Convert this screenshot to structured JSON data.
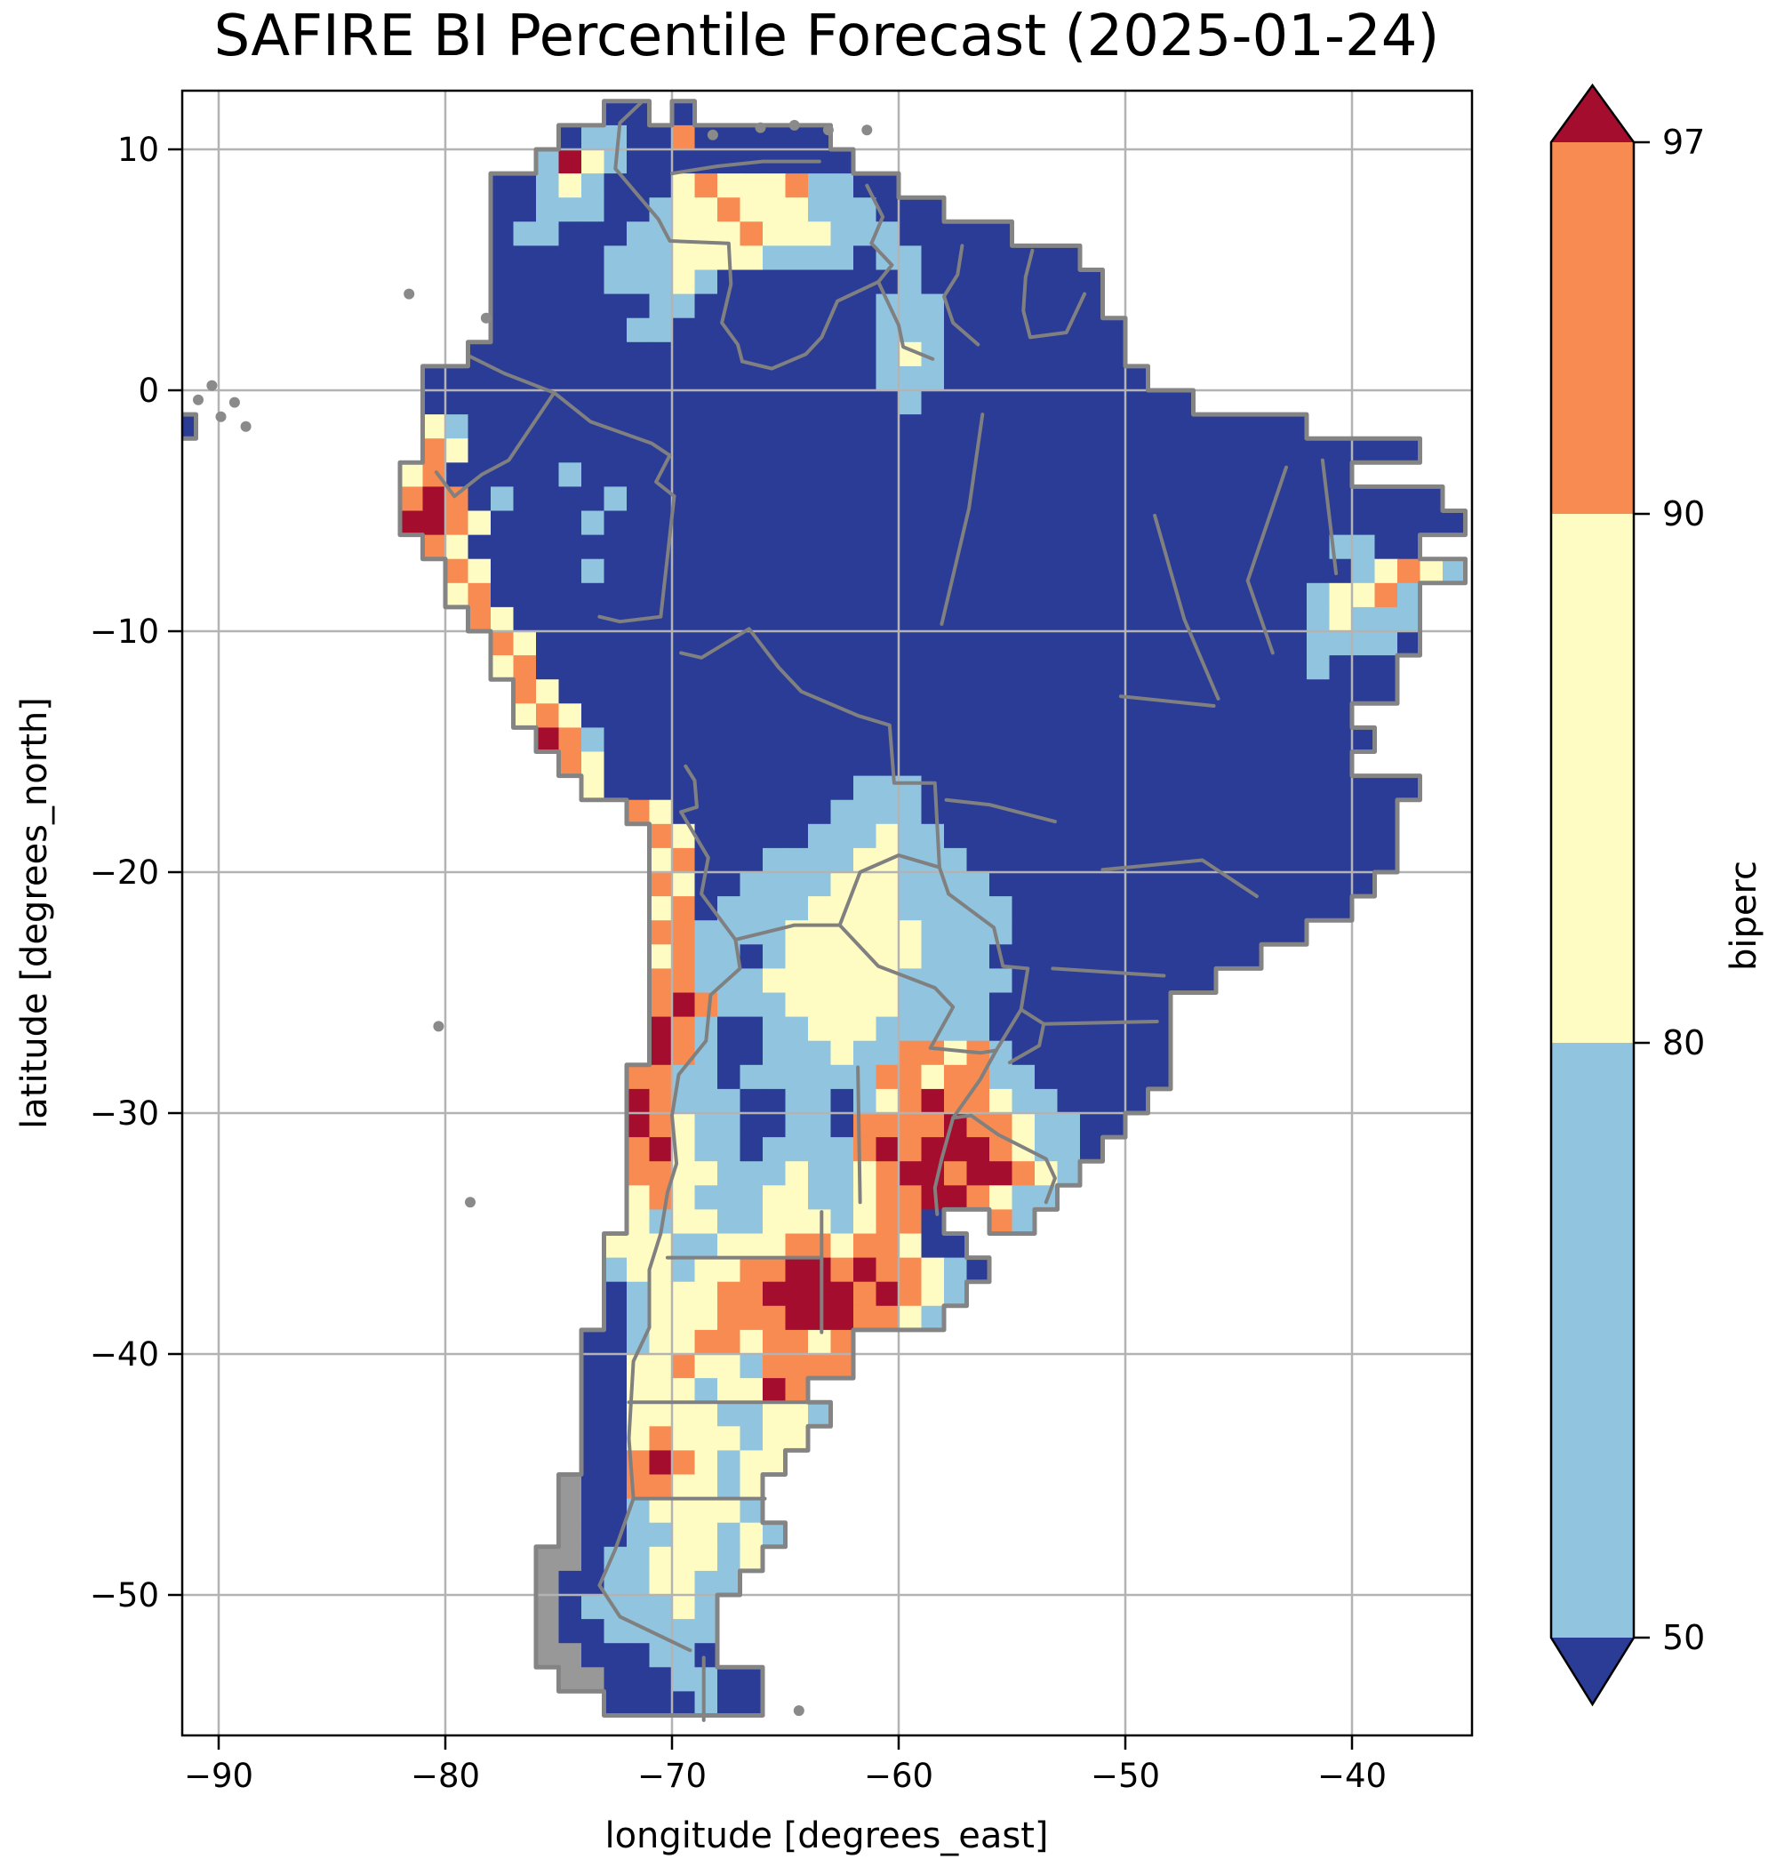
{
  "title": "SAFIRE BI Percentile Forecast (2025-01-24)",
  "axes": {
    "xlabel": "longitude [degrees_east]",
    "ylabel": "latitude [degrees_north]",
    "xticks": [
      {
        "v": -90,
        "label": "−90"
      },
      {
        "v": -80,
        "label": "−80"
      },
      {
        "v": -70,
        "label": "−70"
      },
      {
        "v": -60,
        "label": "−60"
      },
      {
        "v": -50,
        "label": "−50"
      },
      {
        "v": -40,
        "label": "−40"
      }
    ],
    "yticks": [
      {
        "v": 10,
        "label": "10"
      },
      {
        "v": 0,
        "label": "0"
      },
      {
        "v": -10,
        "label": "−10"
      },
      {
        "v": -20,
        "label": "−20"
      },
      {
        "v": -30,
        "label": "−30"
      },
      {
        "v": -40,
        "label": "−40"
      },
      {
        "v": -50,
        "label": "−50"
      }
    ],
    "xlim": [
      -91.6,
      -34.7
    ],
    "ylim": [
      -55.8,
      12.4
    ],
    "grid": true
  },
  "colorbar": {
    "label": "biperc",
    "extend": "both",
    "levels": [
      50,
      80,
      90,
      97
    ],
    "ticks": [
      {
        "v": 97,
        "label": "97"
      },
      {
        "v": 90,
        "label": "90"
      },
      {
        "v": 80,
        "label": "80"
      },
      {
        "v": 50,
        "label": "50"
      }
    ],
    "segments": [
      {
        "range": "> 97",
        "color": "#a50d2e",
        "shape": "triangle-up"
      },
      {
        "range": "90–97",
        "color": "#f78b51",
        "shape": "band"
      },
      {
        "range": "80–90",
        "color": "#fffcc3",
        "shape": "band"
      },
      {
        "range": "50–80",
        "color": "#90c4df",
        "shape": "band"
      },
      {
        "range": "< 50",
        "color": "#2b3c96",
        "shape": "triangle-down"
      }
    ]
  },
  "style_colors": {
    "gridline": "#b3b3b3",
    "admin_border": "#808080",
    "coastline": "#848484",
    "island": "#8a8a8a",
    "frame": "#000000",
    "background": "#ffffff"
  },
  "chart_data": {
    "type": "heatmap",
    "title": "SAFIRE BI Percentile Forecast (2025-01-24)",
    "variable": "biperc",
    "date": "2025-01-24",
    "region": "South America",
    "legend_position": "right",
    "classes": [
      {
        "key": "b",
        "label": "< 50",
        "color": "#2b3c96"
      },
      {
        "key": "l",
        "label": "50–80",
        "color": "#90c4df"
      },
      {
        "key": "y",
        "label": "80–90",
        "color": "#fffcc3"
      },
      {
        "key": "o",
        "label": "90–97",
        "color": "#f78b51"
      },
      {
        "key": "r",
        "label": "> 97",
        "color": "#a50d2e"
      },
      {
        "key": "g",
        "label": "no-data terrain",
        "color": "#989898"
      }
    ],
    "grid": {
      "lon_min": -92,
      "lat_max": 12,
      "dlon": 1,
      "dlat": 1,
      "ncols": 58,
      "nrows": 68,
      "rows": [
        "...................bb.b...................................",
        ".................bllbbobbbbbb.............................",
        "................lrylbbbbbbbbbb............................",
        "..............bblylbbbyoyyyollbb..........................",
        "..............bblllbblyyoyyylllbbb........................",
        "..............bllbbbllyyyoyyylllbbbbb.....................",
        "..............bbbbblllyyyyllllbllbbbbbbb..................",
        "..............bbbbblllylbbbbbbbblbbbbbbbb.................",
        "..............bbbbbbbllbbbbbbbblllbbbbbbb.................",
        "..............bbbbbbllbbbbbbbbblllbbbbbbbb................",
        ".............bbbbbbbbbbbbbbbbbblylbbbbbbbb................",
        "...........bbbbbbbbbbbbbbbbbbbblllbbbbbbbbb...............",
        "...........bbbbbbbbbbbbbbbbbbbbblbbbbbbbbbbbb.............",
        "b..........ylbbbbbbbbbbbbbbbbbbbbbbbbbbbbbbbbbbbbb........",
        "...........oybbbbbbbbbbbbbbbbbbbbbbbbbbbbbbbbbbbbbbbbbb...",
        "..........yobbbbblbbbbbbbbbbbbbbbbbbbbbbbbbbbbbbbbbb....",
        "..........oroblbbbblbbbbbbbbbbbbbbbbbbbbbbbbbbbbbbbbbbbb.",
        "..........rroybbbblbbbbbbbbbbbbbbbbbbbbbbbbbbbbbbbbbbbbbb",
        "...........oybbbbbbbbbbbbbbbbbbbbbbbbbbbbbbbbbbbbbbllbb",
        "............oybbbblbbbbbbbbbbbbbbbbbbbbbbbbbbbbbbbbblyoyl",
        "............yobbbbbbbbbbbbbbbbbbbbbbbbbbbbbbbbbbbblyyol.",
        ".............oybbbbbbbbbbbbbbbbbbbbbbbbbbbbbbbbbbblylll.",
        "..............oybbbbbbbbbbbbbbbbbbbbbbbbbbbbbbbbbbllllb..",
        "..............yobbbbbbbbbbbbbbbbbbbbbbbbbbbbbbbbbblbbb...",
        "...............oybbbbbbbbbbbbbbbbbbbbbbbbbbbbbbbbbbbbb...",
        "...............yoybbbbbbbbbbbbbbbbbbbbbbbbbbbbbbbbbb....",
        "................rolbbbbbbbbbbbbbbbbbbbbbbbbbbbbbbbbbb....",
        ".................oybbbbbbbbbbbbbbbbbbbbbbbbbbbbbbbbb....",
        "..................ybbbbbbbbbbblllbbbbbbbbbbbbbbbbbbbbbb..",
        "....................oybbbbbbbllllbbbbbbbbbbbbbbbbbbbbb...",
        ".....................oybbbbblllyllbbbbbbbbbbbbbbbbbbbb...",
        ".....................yobbbllllyylllbbbbbbbbbbbbbbbbbbb...",
        ".....................oybbllllyyyllllbbbbbbbbbbbbbbbbb....",
        ".....................yobllllyyyylllllbbbbbbbbbbbbbbb.....",
        ".....................oollllyyyyyyllllbbbbbbbbbbbbb.......",
        ".....................yollblyyyyyylllbbbbbbbbbbbb.........",
        ".....................oolllyyyyyylllllbbbbbbbbb...........",
        ".....................orolllyyyyyllllbbbbbbbb.............",
        ".....................rolbbllyyylllllbbbbbbbb.............",
        ".....................rolbblllyllooyolbbbbbbb.............",
        "....................oollbllllllooyoollbbbbbb.............",
        "....................rolllbbllblyorooyllbbbb...............",
        "....................royllbbllboooorooyllbb................",
        "....................oryllbllllororrroyllb.................",
        "....................ooyylllyllyorrorroyl..................",
        "....................yoylllyyllyoorroyll...................",
        "....................ylyyllyyylyoob..ol....................",
        "...................yyyllyyyooyooybb.......................",
        "...................lyylyyoorrorooylb......................",
        "...................blyyyoorrrroroyl.......................",
        "...................blyyyooorrrooyl........................",
        "..................bblyyooyooyo............................",
        "..................bbyyoyyloooo............................",
        "..................bbyyylyyro..............................",
        "..................bbyyyyllyyl.............................",
        "..................bbyoyyylyy..............................",
        "..................bboroylyy...............................",
        ".................gbbooyyly................................",
        ".................gbblyyyyl................................",
        ".................gbbllyylyl...............................",
        "................ggbllyyyly................................",
        "................gbbllyyll.................................",
        "................gbllllyl..................................",
        "................gbblllll..................................",
        "................ggbbbllb..................................",
        ".................ggbbbllbb................................",
        "...................bbbblbb................................",
        ".........................................................."
      ]
    },
    "admin_borders": [
      [
        [
          -71.3,
          12
        ],
        [
          -72.3,
          11.1
        ],
        [
          -72.5,
          9.2
        ],
        [
          -70.6,
          7.1
        ],
        [
          -70.1,
          6.2
        ],
        [
          -67.5,
          6.1
        ],
        [
          -67.4,
          4.4
        ],
        [
          -67.8,
          2.8
        ],
        [
          -67.1,
          1.9
        ],
        [
          -66.9,
          1.2
        ]
      ],
      [
        [
          -66.9,
          1.2
        ],
        [
          -65.6,
          0.9
        ],
        [
          -64.1,
          1.5
        ],
        [
          -63.4,
          2.2
        ],
        [
          -62.7,
          3.7
        ],
        [
          -60.9,
          4.5
        ],
        [
          -60,
          2.7
        ],
        [
          -59.8,
          1.8
        ],
        [
          -58.5,
          1.3
        ]
      ],
      [
        [
          -61.4,
          8.5
        ],
        [
          -60.7,
          7.2
        ],
        [
          -61.2,
          6.1
        ],
        [
          -60.3,
          5.2
        ],
        [
          -60.9,
          4.5
        ]
      ],
      [
        [
          -57.2,
          6
        ],
        [
          -57.4,
          4.8
        ],
        [
          -58,
          3.9
        ],
        [
          -57.6,
          2.8
        ],
        [
          -56.5,
          1.9
        ]
      ],
      [
        [
          -54.1,
          5.8
        ],
        [
          -54.4,
          4.7
        ],
        [
          -54.5,
          3.3
        ],
        [
          -54.2,
          2.2
        ],
        [
          -52.6,
          2.4
        ],
        [
          -51.8,
          4
        ]
      ],
      [
        [
          -78.9,
          1.4
        ],
        [
          -77.4,
          0.7
        ],
        [
          -76.3,
          0.3
        ],
        [
          -75.2,
          -0.1
        ],
        [
          -73.6,
          -1.3
        ],
        [
          -70.9,
          -2.2
        ],
        [
          -70.1,
          -2.7
        ],
        [
          -70.7,
          -3.8
        ],
        [
          -69.9,
          -4.4
        ]
      ],
      [
        [
          -80.4,
          -3.4
        ],
        [
          -79.6,
          -4.4
        ],
        [
          -78.4,
          -3.5
        ],
        [
          -77.2,
          -2.9
        ],
        [
          -75.2,
          -0.1
        ]
      ],
      [
        [
          -69.9,
          -4.4
        ],
        [
          -70.5,
          -9.4
        ],
        [
          -72.3,
          -9.6
        ],
        [
          -73.2,
          -9.4
        ]
      ],
      [
        [
          -69.6,
          -10.9
        ],
        [
          -68.7,
          -11.1
        ],
        [
          -66.6,
          -9.9
        ],
        [
          -65.3,
          -11.5
        ],
        [
          -64.3,
          -12.5
        ],
        [
          -61.8,
          -13.5
        ],
        [
          -60.4,
          -13.9
        ],
        [
          -60.2,
          -16.3
        ],
        [
          -58.4,
          -16.3
        ],
        [
          -58.2,
          -19.8
        ],
        [
          -57.8,
          -20.9
        ]
      ],
      [
        [
          -69.4,
          -15.6
        ],
        [
          -69,
          -16.2
        ],
        [
          -68.9,
          -17.3
        ],
        [
          -69.6,
          -17.5
        ]
      ],
      [
        [
          -69.6,
          -17.5
        ],
        [
          -68.4,
          -19.4
        ],
        [
          -68.7,
          -20.9
        ],
        [
          -67.2,
          -22.8
        ],
        [
          -67,
          -24
        ],
        [
          -68.3,
          -25.1
        ],
        [
          -68.5,
          -27
        ],
        [
          -69.7,
          -28.4
        ],
        [
          -70,
          -30.1
        ],
        [
          -69.8,
          -32.1
        ],
        [
          -70.2,
          -33.3
        ],
        [
          -70.5,
          -35
        ],
        [
          -71,
          -36.5
        ],
        [
          -71,
          -38.9
        ],
        [
          -71.7,
          -40.3
        ],
        [
          -71.9,
          -43.5
        ],
        [
          -71.7,
          -46
        ],
        [
          -72.5,
          -48.1
        ],
        [
          -73.2,
          -49.6
        ],
        [
          -72.3,
          -50.9
        ],
        [
          -69.2,
          -52.3
        ]
      ],
      [
        [
          -67.2,
          -22.8
        ],
        [
          -64.6,
          -22.2
        ],
        [
          -62.6,
          -22.2
        ]
      ],
      [
        [
          -62.6,
          -22.2
        ],
        [
          -61.7,
          -20
        ],
        [
          -60,
          -19.3
        ],
        [
          -58.2,
          -19.8
        ]
      ],
      [
        [
          -62.6,
          -22.2
        ],
        [
          -60.9,
          -23.9
        ],
        [
          -58.4,
          -24.8
        ],
        [
          -57.6,
          -25.6
        ],
        [
          -58.6,
          -27.3
        ],
        [
          -56.4,
          -27.5
        ],
        [
          -55.7,
          -27.4
        ]
      ],
      [
        [
          -57.8,
          -20.9
        ],
        [
          -55.8,
          -22.3
        ],
        [
          -55.4,
          -23.9
        ],
        [
          -54.3,
          -24
        ],
        [
          -54.6,
          -25.7
        ],
        [
          -55.7,
          -27.4
        ]
      ],
      [
        [
          -55.7,
          -27.4
        ],
        [
          -56.4,
          -28.6
        ],
        [
          -57.6,
          -30.2
        ]
      ],
      [
        [
          -57.6,
          -30.2
        ],
        [
          -56.8,
          -30.1
        ],
        [
          -55.6,
          -30.9
        ],
        [
          -53.5,
          -31.9
        ],
        [
          -53.1,
          -32.7
        ],
        [
          -53.5,
          -33.7
        ]
      ],
      [
        [
          -57.6,
          -30.2
        ],
        [
          -58.1,
          -31.9
        ],
        [
          -58.4,
          -33.1
        ],
        [
          -58.3,
          -34.2
        ]
      ],
      [
        [
          -54.6,
          -25.7
        ],
        [
          -53.6,
          -26.3
        ],
        [
          -53.8,
          -27.2
        ],
        [
          -55.1,
          -27.9
        ]
      ],
      [
        [
          -68.6,
          -52.6
        ],
        [
          -68.6,
          -55.2
        ]
      ],
      [
        [
          -71.9,
          -42
        ],
        [
          -63.7,
          -42
        ]
      ],
      [
        [
          -71.7,
          -46
        ],
        [
          -65.9,
          -46
        ]
      ],
      [
        [
          -63.4,
          -34.1
        ],
        [
          -63.4,
          -39.1
        ]
      ],
      [
        [
          -70.2,
          -36
        ],
        [
          -63.4,
          -36
        ]
      ],
      [
        [
          -61.8,
          -28.1
        ],
        [
          -61.7,
          -33.7
        ]
      ],
      [
        [
          -56.3,
          -1
        ],
        [
          -56.9,
          -4.9
        ],
        [
          -58.1,
          -9.7
        ]
      ],
      [
        [
          -48.7,
          -5.2
        ],
        [
          -47.4,
          -9.5
        ],
        [
          -45.9,
          -12.8
        ]
      ],
      [
        [
          -42.9,
          -3.2
        ],
        [
          -44.6,
          -7.9
        ],
        [
          -43.5,
          -10.9
        ]
      ],
      [
        [
          -41.3,
          -2.9
        ],
        [
          -40.7,
          -7.6
        ]
      ],
      [
        [
          -50.2,
          -12.7
        ],
        [
          -46.1,
          -13.1
        ]
      ],
      [
        [
          -57.9,
          -17
        ],
        [
          -56,
          -17.2
        ],
        [
          -53.1,
          -17.9
        ]
      ],
      [
        [
          -53.2,
          -24
        ],
        [
          -48.3,
          -24.3
        ]
      ],
      [
        [
          -53.6,
          -26.3
        ],
        [
          -48.6,
          -26.2
        ]
      ],
      [
        [
          -51,
          -19.9
        ],
        [
          -46.6,
          -19.5
        ],
        [
          -44.2,
          -21
        ]
      ],
      [
        [
          -70,
          9
        ],
        [
          -68,
          9.3
        ],
        [
          -66,
          9.5
        ],
        [
          -63.5,
          9.5
        ]
      ]
    ],
    "islands": [
      [
        -90.9,
        -0.4
      ],
      [
        -89.9,
        -1.1
      ],
      [
        -89.3,
        -0.5
      ],
      [
        -90.3,
        0.2
      ],
      [
        -88.8,
        -1.5
      ],
      [
        -81.6,
        4.0
      ],
      [
        -78.2,
        3.0
      ],
      [
        -80.3,
        -26.4
      ],
      [
        -78.9,
        -33.7
      ],
      [
        -64.4,
        -54.8
      ],
      [
        -68.2,
        10.6
      ],
      [
        -66.1,
        10.9
      ],
      [
        -64.6,
        11.0
      ],
      [
        -63.1,
        10.8
      ],
      [
        -61.4,
        10.8
      ]
    ]
  }
}
